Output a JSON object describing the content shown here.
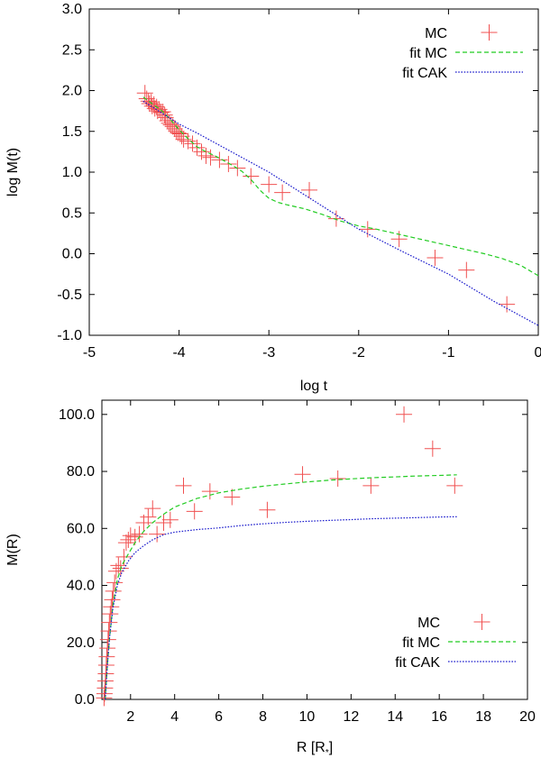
{
  "chart_data": [
    {
      "id": "top",
      "type": "scatter",
      "title": "",
      "xlabel": "log t",
      "ylabel": "log M(t)",
      "xlim": [
        -5,
        0
      ],
      "ylim": [
        -1.0,
        3.0
      ],
      "x_ticks": [
        -5,
        -4,
        -3,
        -2,
        -1,
        0
      ],
      "y_ticks": [
        -1.0,
        -0.5,
        0.0,
        0.5,
        1.0,
        1.5,
        2.0,
        2.5,
        3.0
      ],
      "x_tick_labels": [
        "-5",
        "-4",
        "-3",
        "-2",
        "-1",
        "0"
      ],
      "y_tick_labels": [
        "-1.0",
        "-0.5",
        "0.0",
        "0.5",
        "1.0",
        "1.5",
        "2.0",
        "2.5",
        "3.0"
      ],
      "grid": false,
      "legend_position": "top-right",
      "series": [
        {
          "name": "MC",
          "kind": "points",
          "color": "#f05050",
          "points": [
            [
              -4.38,
              1.97
            ],
            [
              -4.36,
              1.9
            ],
            [
              -4.34,
              1.87
            ],
            [
              -4.33,
              1.84
            ],
            [
              -4.31,
              1.86
            ],
            [
              -4.3,
              1.81
            ],
            [
              -4.28,
              1.83
            ],
            [
              -4.27,
              1.78
            ],
            [
              -4.25,
              1.8
            ],
            [
              -4.24,
              1.75
            ],
            [
              -4.22,
              1.77
            ],
            [
              -4.2,
              1.73
            ],
            [
              -4.18,
              1.74
            ],
            [
              -4.16,
              1.7
            ],
            [
              -4.15,
              1.67
            ],
            [
              -4.13,
              1.63
            ],
            [
              -4.11,
              1.6
            ],
            [
              -4.09,
              1.58
            ],
            [
              -4.07,
              1.56
            ],
            [
              -4.05,
              1.53
            ],
            [
              -4.03,
              1.5
            ],
            [
              -4.01,
              1.48
            ],
            [
              -3.99,
              1.47
            ],
            [
              -3.97,
              1.44
            ],
            [
              -3.95,
              1.4
            ],
            [
              -3.9,
              1.38
            ],
            [
              -3.85,
              1.35
            ],
            [
              -3.8,
              1.3
            ],
            [
              -3.75,
              1.25
            ],
            [
              -3.7,
              1.2
            ],
            [
              -3.65,
              1.18
            ],
            [
              -3.55,
              1.15
            ],
            [
              -3.45,
              1.1
            ],
            [
              -3.35,
              1.05
            ],
            [
              -3.2,
              0.95
            ],
            [
              -3.0,
              0.85
            ],
            [
              -2.85,
              0.75
            ],
            [
              -2.55,
              0.78
            ],
            [
              -2.25,
              0.43
            ],
            [
              -1.9,
              0.3
            ],
            [
              -1.55,
              0.18
            ],
            [
              -1.15,
              -0.05
            ],
            [
              -0.8,
              -0.2
            ],
            [
              -0.35,
              -0.62
            ]
          ]
        },
        {
          "name": "fit MC",
          "kind": "line",
          "color": "#22cc22",
          "dash": "dashed",
          "points": [
            [
              -4.4,
              1.92
            ],
            [
              -4.3,
              1.84
            ],
            [
              -4.2,
              1.76
            ],
            [
              -4.1,
              1.65
            ],
            [
              -4.0,
              1.52
            ],
            [
              -3.9,
              1.41
            ],
            [
              -3.8,
              1.31
            ],
            [
              -3.7,
              1.25
            ],
            [
              -3.6,
              1.2
            ],
            [
              -3.5,
              1.14
            ],
            [
              -3.4,
              1.08
            ],
            [
              -3.3,
              1.01
            ],
            [
              -3.2,
              0.91
            ],
            [
              -3.1,
              0.78
            ],
            [
              -3.0,
              0.68
            ],
            [
              -2.9,
              0.63
            ],
            [
              -2.8,
              0.6
            ],
            [
              -2.6,
              0.55
            ],
            [
              -2.4,
              0.48
            ],
            [
              -2.2,
              0.4
            ],
            [
              -2.0,
              0.34
            ],
            [
              -1.8,
              0.3
            ],
            [
              -1.6,
              0.25
            ],
            [
              -1.4,
              0.2
            ],
            [
              -1.2,
              0.15
            ],
            [
              -1.0,
              0.1
            ],
            [
              -0.8,
              0.05
            ],
            [
              -0.6,
              0.0
            ],
            [
              -0.4,
              -0.06
            ],
            [
              -0.2,
              -0.14
            ],
            [
              0.0,
              -0.27
            ]
          ]
        },
        {
          "name": "fit CAK",
          "kind": "line",
          "color": "#1a1acc",
          "dash": "dotted",
          "points": [
            [
              -4.4,
              1.87
            ],
            [
              -4.3,
              1.8
            ],
            [
              -4.2,
              1.73
            ],
            [
              -4.1,
              1.66
            ],
            [
              -4.0,
              1.59
            ],
            [
              -3.8,
              1.48
            ],
            [
              -3.5,
              1.3
            ],
            [
              -3.0,
              1.0
            ],
            [
              -2.5,
              0.65
            ],
            [
              -2.0,
              0.3
            ],
            [
              -1.5,
              0.02
            ],
            [
              -1.0,
              -0.25
            ],
            [
              -0.5,
              -0.58
            ],
            [
              0.0,
              -0.88
            ]
          ]
        }
      ]
    },
    {
      "id": "bottom",
      "type": "scatter",
      "title": "",
      "xlabel": "R [R",
      "xlabel_sub": "*",
      "xlabel_close": "]",
      "ylabel": "M(R)",
      "xlim": [
        0.7,
        20
      ],
      "ylim": [
        0.0,
        105.0
      ],
      "x_ticks": [
        2,
        4,
        6,
        8,
        10,
        12,
        14,
        16,
        18,
        20
      ],
      "y_ticks": [
        0.0,
        20.0,
        40.0,
        60.0,
        80.0,
        100.0
      ],
      "x_tick_labels": [
        "2",
        "4",
        "6",
        "8",
        "10",
        "12",
        "14",
        "16",
        "18",
        "20"
      ],
      "y_tick_labels": [
        "0.0",
        "20.0",
        "40.0",
        "60.0",
        "80.0",
        "100.0"
      ],
      "grid": false,
      "legend_position": "bottom-right",
      "series": [
        {
          "name": "MC",
          "kind": "points",
          "color": "#f05050",
          "points": [
            [
              0.8,
              0.5
            ],
            [
              0.82,
              2.0
            ],
            [
              0.84,
              4.0
            ],
            [
              0.86,
              6.5
            ],
            [
              0.88,
              9.0
            ],
            [
              0.9,
              12.0
            ],
            [
              0.92,
              15.0
            ],
            [
              0.95,
              18.0
            ],
            [
              0.98,
              21.0
            ],
            [
              1.01,
              24.0
            ],
            [
              1.04,
              27.0
            ],
            [
              1.08,
              30.0
            ],
            [
              1.12,
              32.5
            ],
            [
              1.17,
              35.0
            ],
            [
              1.22,
              38.0
            ],
            [
              1.28,
              41.0
            ],
            [
              1.35,
              45.0
            ],
            [
              1.45,
              47.0
            ],
            [
              1.55,
              46.0
            ],
            [
              1.7,
              50.0
            ],
            [
              1.8,
              55.0
            ],
            [
              1.9,
              56.0
            ],
            [
              2.0,
              57.5
            ],
            [
              2.2,
              57.0
            ],
            [
              2.4,
              58.0
            ],
            [
              2.6,
              62.0
            ],
            [
              2.8,
              64.0
            ],
            [
              3.0,
              67.0
            ],
            [
              3.2,
              58.0
            ],
            [
              3.5,
              62.0
            ],
            [
              3.8,
              63.0
            ],
            [
              4.4,
              75.0
            ],
            [
              4.9,
              66.0
            ],
            [
              5.6,
              73.0
            ],
            [
              6.6,
              71.0
            ],
            [
              8.2,
              66.5
            ],
            [
              9.8,
              79.0
            ],
            [
              11.4,
              77.5
            ],
            [
              12.9,
              75.0
            ],
            [
              14.4,
              100.0
            ],
            [
              15.7,
              88.0
            ],
            [
              16.7,
              75.0
            ]
          ]
        },
        {
          "name": "fit MC",
          "kind": "line",
          "color": "#22cc22",
          "dash": "dashed",
          "points": [
            [
              0.85,
              0.0
            ],
            [
              0.95,
              12.0
            ],
            [
              1.05,
              22.0
            ],
            [
              1.2,
              33.0
            ],
            [
              1.4,
              42.0
            ],
            [
              1.6,
              47.0
            ],
            [
              1.9,
              51.0
            ],
            [
              2.2,
              55.0
            ],
            [
              2.6,
              59.0
            ],
            [
              3.0,
              62.0
            ],
            [
              3.5,
              65.0
            ],
            [
              4.0,
              67.5
            ],
            [
              5.0,
              70.5
            ],
            [
              6.0,
              72.5
            ],
            [
              7.0,
              73.8
            ],
            [
              8.0,
              74.8
            ],
            [
              9.0,
              75.6
            ],
            [
              10.0,
              76.3
            ],
            [
              11.0,
              76.9
            ],
            [
              12.0,
              77.4
            ],
            [
              13.0,
              77.8
            ],
            [
              14.0,
              78.1
            ],
            [
              15.0,
              78.4
            ],
            [
              16.0,
              78.6
            ],
            [
              16.8,
              78.8
            ]
          ]
        },
        {
          "name": "fit CAK",
          "kind": "line",
          "color": "#1a1acc",
          "dash": "dotted",
          "points": [
            [
              0.85,
              0.0
            ],
            [
              0.95,
              12.0
            ],
            [
              1.05,
              22.0
            ],
            [
              1.2,
              32.0
            ],
            [
              1.4,
              40.0
            ],
            [
              1.6,
              44.5
            ],
            [
              1.9,
              48.5
            ],
            [
              2.2,
              51.5
            ],
            [
              2.6,
              54.0
            ],
            [
              3.0,
              56.0
            ],
            [
              3.5,
              57.8
            ],
            [
              4.0,
              58.7
            ],
            [
              5.0,
              59.6
            ],
            [
              6.0,
              60.2
            ],
            [
              7.0,
              61.0
            ],
            [
              8.0,
              61.6
            ],
            [
              9.0,
              62.1
            ],
            [
              10.0,
              62.5
            ],
            [
              11.0,
              62.8
            ],
            [
              12.0,
              63.1
            ],
            [
              13.0,
              63.4
            ],
            [
              14.0,
              63.6
            ],
            [
              15.0,
              63.8
            ],
            [
              16.0,
              64.0
            ],
            [
              16.8,
              64.1
            ]
          ]
        }
      ]
    }
  ]
}
